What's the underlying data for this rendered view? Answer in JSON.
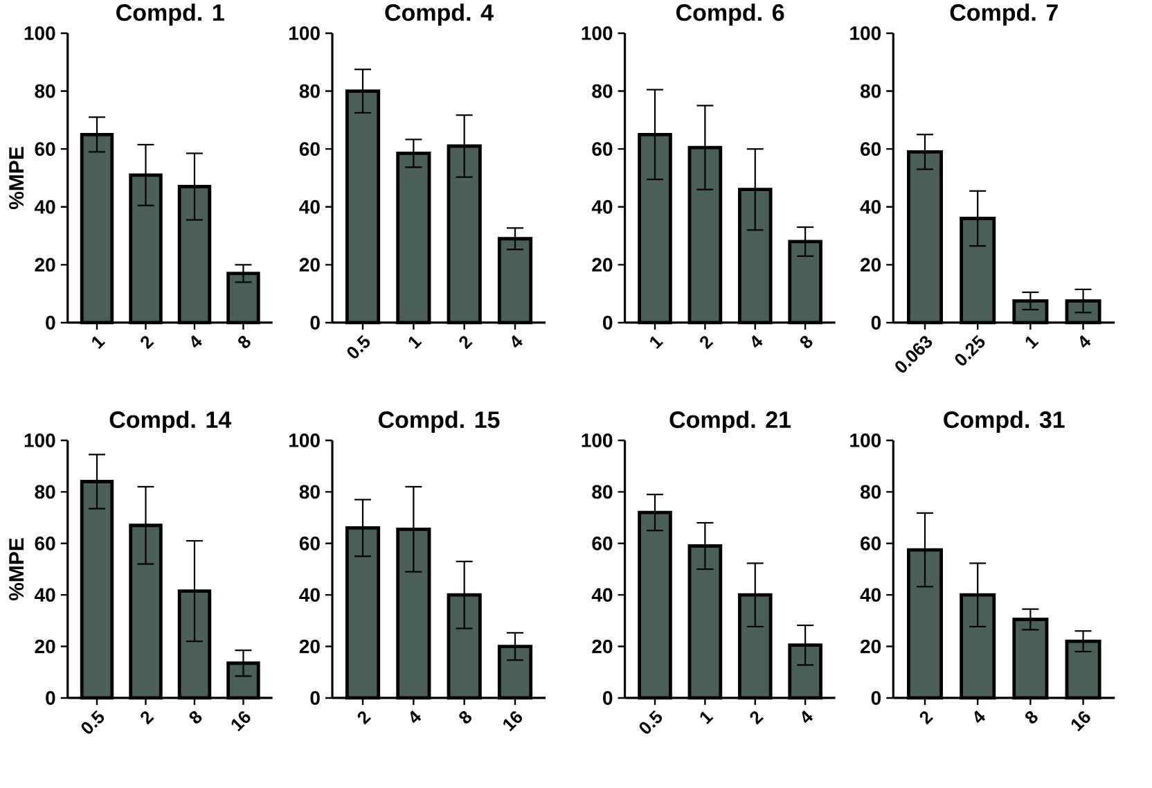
{
  "chart_data": [
    {
      "type": "bar",
      "title": "Compd. 1",
      "ylabel": "%MPE",
      "categories": [
        "1",
        "2",
        "4",
        "8"
      ],
      "values": [
        65,
        51,
        47,
        17
      ],
      "errors": [
        6,
        10.5,
        11.5,
        3
      ],
      "color": "#4a5f5a",
      "ylim": [
        0,
        100
      ],
      "yticks": [
        0,
        20,
        40,
        60,
        80,
        100
      ]
    },
    {
      "type": "bar",
      "title": "Compd. 4",
      "categories": [
        "0.5",
        "1",
        "2",
        "4"
      ],
      "values": [
        80,
        58.5,
        61,
        29
      ],
      "errors": [
        7.5,
        4.8,
        10.7,
        3.7
      ],
      "color": "#4a5f5a",
      "ylim": [
        0,
        100
      ],
      "yticks": [
        0,
        20,
        40,
        60,
        80,
        100
      ]
    },
    {
      "type": "bar",
      "title": "Compd. 6",
      "categories": [
        "1",
        "2",
        "4",
        "8"
      ],
      "values": [
        65,
        60.5,
        46,
        28
      ],
      "errors": [
        15.5,
        14.5,
        14,
        5
      ],
      "color": "#4a5f5a",
      "ylim": [
        0,
        100
      ],
      "yticks": [
        0,
        20,
        40,
        60,
        80,
        100
      ]
    },
    {
      "type": "bar",
      "title": "Compd. 7",
      "categories": [
        "0.063",
        "0.25",
        "1",
        "4"
      ],
      "values": [
        59,
        36,
        7.5,
        7.5
      ],
      "errors": [
        6,
        9.5,
        3,
        4
      ],
      "color": "#4a5f5a",
      "ylim": [
        0,
        100
      ],
      "yticks": [
        0,
        20,
        40,
        60,
        80,
        100
      ]
    },
    {
      "type": "bar",
      "title": "Compd. 14",
      "ylabel": "%MPE",
      "categories": [
        "0.5",
        "2",
        "8",
        "16"
      ],
      "values": [
        84,
        67,
        41.5,
        13.5
      ],
      "errors": [
        10.5,
        15,
        19.5,
        5
      ],
      "color": "#4a5f5a",
      "ylim": [
        0,
        100
      ],
      "yticks": [
        0,
        20,
        40,
        60,
        80,
        100
      ]
    },
    {
      "type": "bar",
      "title": "Compd. 15",
      "categories": [
        "2",
        "4",
        "8",
        "16"
      ],
      "values": [
        66,
        65.5,
        40,
        20
      ],
      "errors": [
        11,
        16.5,
        13,
        5.3
      ],
      "color": "#4a5f5a",
      "ylim": [
        0,
        100
      ],
      "yticks": [
        0,
        20,
        40,
        60,
        80,
        100
      ]
    },
    {
      "type": "bar",
      "title": "Compd. 21",
      "categories": [
        "0.5",
        "1",
        "2",
        "4"
      ],
      "values": [
        72,
        59,
        40,
        20.5
      ],
      "errors": [
        7,
        9,
        12.3,
        7.7
      ],
      "color": "#4a5f5a",
      "ylim": [
        0,
        100
      ],
      "yticks": [
        0,
        20,
        40,
        60,
        80,
        100
      ]
    },
    {
      "type": "bar",
      "title": "Compd. 31",
      "categories": [
        "2",
        "4",
        "8",
        "16"
      ],
      "values": [
        57.5,
        40,
        30.5,
        22
      ],
      "errors": [
        14.3,
        12.3,
        4,
        4
      ],
      "color": "#4a5f5a",
      "ylim": [
        0,
        100
      ],
      "yticks": [
        0,
        20,
        40,
        60,
        80,
        100
      ]
    }
  ]
}
